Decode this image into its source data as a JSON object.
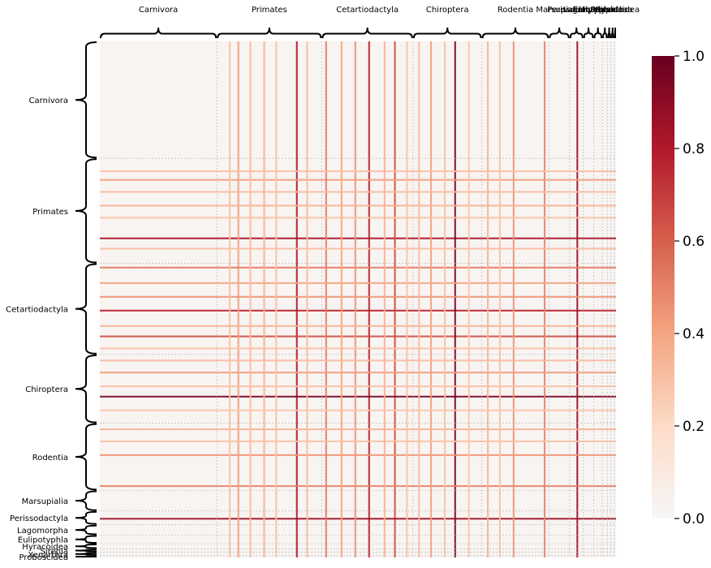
{
  "chart_data": {
    "type": "heatmap",
    "title": "",
    "xlabel": "",
    "ylabel": "",
    "n": 300,
    "groups": [
      {
        "name": "Carnivora",
        "count": 68
      },
      {
        "name": "Primates",
        "count": 61
      },
      {
        "name": "Cetartiodactyla",
        "count": 53
      },
      {
        "name": "Chiroptera",
        "count": 40
      },
      {
        "name": "Rodentia",
        "count": 39
      },
      {
        "name": "Marsupialia",
        "count": 12
      },
      {
        "name": "Perissodactyla",
        "count": 8
      },
      {
        "name": "Lagomorpha",
        "count": 6
      },
      {
        "name": "Eulipotyphla",
        "count": 5
      },
      {
        "name": "Hyracoidea",
        "count": 3
      },
      {
        "name": "Sirenia",
        "count": 2
      },
      {
        "name": "Xenarthra",
        "count": 2
      },
      {
        "name": "Proboscidea",
        "count": 1
      }
    ],
    "highlight_lines": [
      {
        "index": 114,
        "value": 0.82
      },
      {
        "index": 156,
        "value": 0.78
      },
      {
        "index": 171,
        "value": 0.65
      },
      {
        "index": 206,
        "value": 0.95
      },
      {
        "index": 277,
        "value": 0.85
      },
      {
        "index": 258,
        "value": 0.5
      },
      {
        "index": 240,
        "value": 0.45
      },
      {
        "index": 80,
        "value": 0.42
      },
      {
        "index": 131,
        "value": 0.52
      },
      {
        "index": 148,
        "value": 0.45
      },
      {
        "index": 192,
        "value": 0.42
      },
      {
        "index": 95,
        "value": 0.35
      },
      {
        "index": 140,
        "value": 0.4
      },
      {
        "index": 225,
        "value": 0.35
      },
      {
        "index": 232,
        "value": 0.3
      },
      {
        "index": 75,
        "value": 0.3
      },
      {
        "index": 87,
        "value": 0.32
      },
      {
        "index": 102,
        "value": 0.3
      },
      {
        "index": 120,
        "value": 0.32
      },
      {
        "index": 165,
        "value": 0.35
      },
      {
        "index": 178,
        "value": 0.3
      },
      {
        "index": 185,
        "value": 0.32
      },
      {
        "index": 200,
        "value": 0.3
      },
      {
        "index": 214,
        "value": 0.28
      }
    ],
    "colorbar": {
      "min": 0.0,
      "max": 1.0,
      "ticks": [
        "0.0",
        "0.2",
        "0.4",
        "0.6",
        "0.8",
        "1.0"
      ],
      "colormap": [
        "#f7f7f7",
        "#fddbc7",
        "#f4a582",
        "#d6604d",
        "#b2182b",
        "#67001f"
      ]
    }
  }
}
